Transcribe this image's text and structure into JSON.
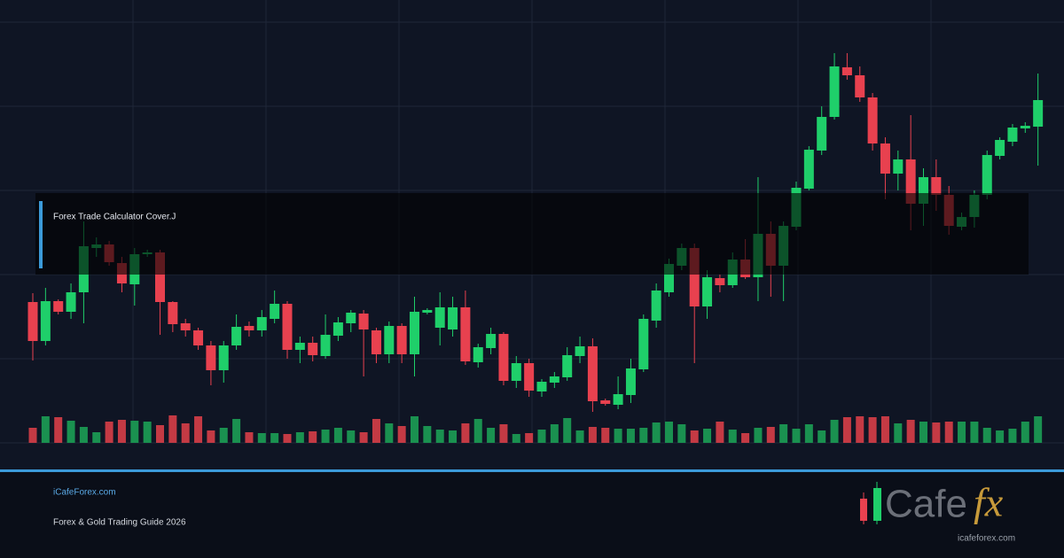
{
  "chart_data": {
    "type": "candlestick",
    "caption": "Forex Trade Calculator Cover.J",
    "ylim": [
      0,
      500
    ],
    "up_color": "#1fcf6a",
    "down_color": "#e8414f",
    "up_volume_color": "#1a9150",
    "down_volume_color": "#c43a44",
    "open": [
      159,
      115,
      160,
      148,
      170,
      220,
      224,
      203,
      179,
      213,
      215,
      159,
      135,
      127,
      110,
      82,
      110,
      132,
      127,
      140,
      157,
      105,
      113,
      98,
      121,
      135,
      146,
      127,
      100,
      132,
      100,
      147,
      130,
      128,
      153,
      91,
      107,
      123,
      70,
      90,
      58,
      68,
      74,
      98,
      109,
      48,
      43,
      54,
      83,
      138,
      170,
      200,
      220,
      154,
      186,
      178,
      207,
      187,
      236,
      200,
      244,
      287,
      330,
      368,
      424,
      415,
      390,
      338,
      304,
      320,
      270,
      300,
      280,
      244,
      255,
      280,
      324,
      340,
      355,
      357
    ],
    "high": [
      169,
      175,
      162,
      180,
      250,
      232,
      228,
      210,
      220,
      218,
      218,
      160,
      140,
      130,
      115,
      115,
      145,
      137,
      150,
      172,
      160,
      120,
      120,
      145,
      142,
      150,
      150,
      130,
      137,
      135,
      165,
      152,
      170,
      165,
      172,
      112,
      130,
      125,
      98,
      95,
      72,
      80,
      108,
      120,
      118,
      50,
      75,
      95,
      145,
      180,
      208,
      225,
      225,
      195,
      190,
      215,
      230,
      300,
      250,
      250,
      295,
      335,
      380,
      440,
      440,
      425,
      395,
      345,
      330,
      370,
      310,
      320,
      290,
      260,
      285,
      330,
      345,
      360,
      362,
      417
    ],
    "low": [
      93,
      110,
      145,
      140,
      135,
      210,
      200,
      170,
      155,
      210,
      122,
      125,
      120,
      105,
      65,
      68,
      105,
      120,
      120,
      135,
      95,
      90,
      92,
      95,
      115,
      125,
      75,
      90,
      90,
      90,
      75,
      145,
      110,
      120,
      88,
      85,
      100,
      65,
      62,
      52,
      52,
      62,
      70,
      90,
      35,
      42,
      38,
      45,
      80,
      130,
      165,
      195,
      90,
      140,
      170,
      175,
      185,
      160,
      165,
      160,
      240,
      285,
      325,
      365,
      410,
      385,
      330,
      275,
      285,
      240,
      245,
      262,
      235,
      240,
      243,
      275,
      320,
      335,
      350,
      313
    ],
    "close": [
      115,
      160,
      148,
      170,
      222,
      224,
      204,
      180,
      213,
      215,
      159,
      134,
      127,
      110,
      82,
      110,
      131,
      127,
      142,
      157,
      105,
      113,
      99,
      122,
      136,
      147,
      128,
      100,
      132,
      100,
      148,
      150,
      153,
      153,
      92,
      108,
      123,
      70,
      90,
      59,
      69,
      75,
      99,
      109,
      47,
      44,
      55,
      84,
      140,
      172,
      202,
      220,
      154,
      187,
      178,
      207,
      187,
      236,
      200,
      245,
      288,
      331,
      368,
      425,
      415,
      390,
      338,
      304,
      320,
      270,
      300,
      280,
      245,
      255,
      280,
      325,
      342,
      356,
      358,
      387
    ],
    "volume": [
      17,
      30,
      29,
      25,
      18,
      12,
      24,
      26,
      25,
      24,
      20,
      31,
      22,
      30,
      14,
      17,
      27,
      12,
      11,
      11,
      10,
      12,
      13,
      15,
      17,
      14,
      12,
      27,
      22,
      19,
      30,
      19,
      15,
      14,
      22,
      27,
      17,
      21,
      10,
      11,
      15,
      21,
      28,
      14,
      18,
      17,
      16,
      16,
      17,
      23,
      24,
      21,
      14,
      16,
      24,
      15,
      11,
      17,
      18,
      21,
      16,
      21,
      14,
      26,
      29,
      30,
      29,
      30,
      22,
      26,
      24,
      23,
      24,
      24,
      24,
      17,
      14,
      16,
      24,
      30
    ]
  },
  "footer": {
    "site": "iCafeForex.com",
    "subtitle": "Forex & Gold Trading Guide 2026",
    "logo": {
      "brand": "Cafe",
      "suffix": "fx",
      "url": "icafeforex.com"
    }
  }
}
